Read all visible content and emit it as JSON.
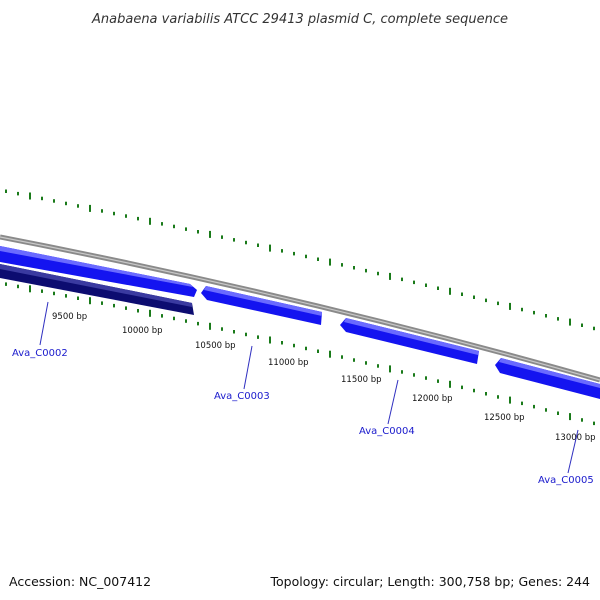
{
  "title": "Anabaena variabilis ATCC 29413 plasmid C, complete sequence",
  "footer": {
    "accession": "Accession: NC_007412",
    "summary": "Topology: circular; Length: 300,758 bp; Genes: 244"
  },
  "colors": {
    "backbone": "#8a8a8a",
    "gene_forward": "#1414f0",
    "gene_forward_highlight": "#6a6aff",
    "gene_reverse": "#0c0c70",
    "gene_reverse_highlight": "#3a3aa0",
    "tick_marks": "#1a7a1a",
    "gene_label": "#1a1acc",
    "leader_line": "#3030c0"
  },
  "scale_labels": [
    "9500 bp",
    "10000 bp",
    "10500 bp",
    "11000 bp",
    "11500 bp",
    "12000 bp",
    "12500 bp",
    "13000 bp"
  ],
  "genes": [
    {
      "name": "Ava_C0002",
      "strand": "reverse"
    },
    {
      "name": "Ava_C0003",
      "strand": "forward"
    },
    {
      "name": "Ava_C0004",
      "strand": "forward"
    },
    {
      "name": "Ava_C0005",
      "strand": "forward"
    }
  ],
  "extra_genes": [
    {
      "strand": "forward"
    }
  ]
}
